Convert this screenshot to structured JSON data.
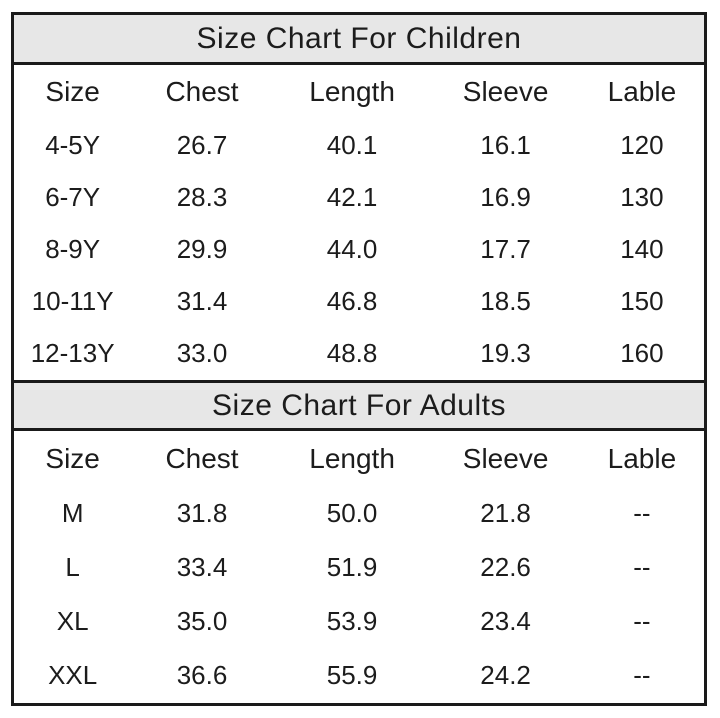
{
  "styles": {
    "background": "#ffffff",
    "border_color": "#1a1a1a",
    "title_band_bg": "#e7e7e7",
    "text_color": "#1c1c1c"
  },
  "chart_data": [
    {
      "type": "table",
      "title": "Size Chart For Children",
      "columns": [
        "Size",
        "Chest",
        "Length",
        "Sleeve",
        "Lable"
      ],
      "rows": [
        [
          "4-5Y",
          "26.7",
          "40.1",
          "16.1",
          "120"
        ],
        [
          "6-7Y",
          "28.3",
          "42.1",
          "16.9",
          "130"
        ],
        [
          "8-9Y",
          "29.9",
          "44.0",
          "17.7",
          "140"
        ],
        [
          "10-11Y",
          "31.4",
          "46.8",
          "18.5",
          "150"
        ],
        [
          "12-13Y",
          "33.0",
          "48.8",
          "19.3",
          "160"
        ]
      ]
    },
    {
      "type": "table",
      "title": "Size Chart For Adults",
      "columns": [
        "Size",
        "Chest",
        "Length",
        "Sleeve",
        "Lable"
      ],
      "rows": [
        [
          "M",
          "31.8",
          "50.0",
          "21.8",
          "--"
        ],
        [
          "L",
          "33.4",
          "51.9",
          "22.6",
          "--"
        ],
        [
          "XL",
          "35.0",
          "53.9",
          "23.4",
          "--"
        ],
        [
          "XXL",
          "36.6",
          "55.9",
          "24.2",
          "--"
        ]
      ]
    }
  ]
}
